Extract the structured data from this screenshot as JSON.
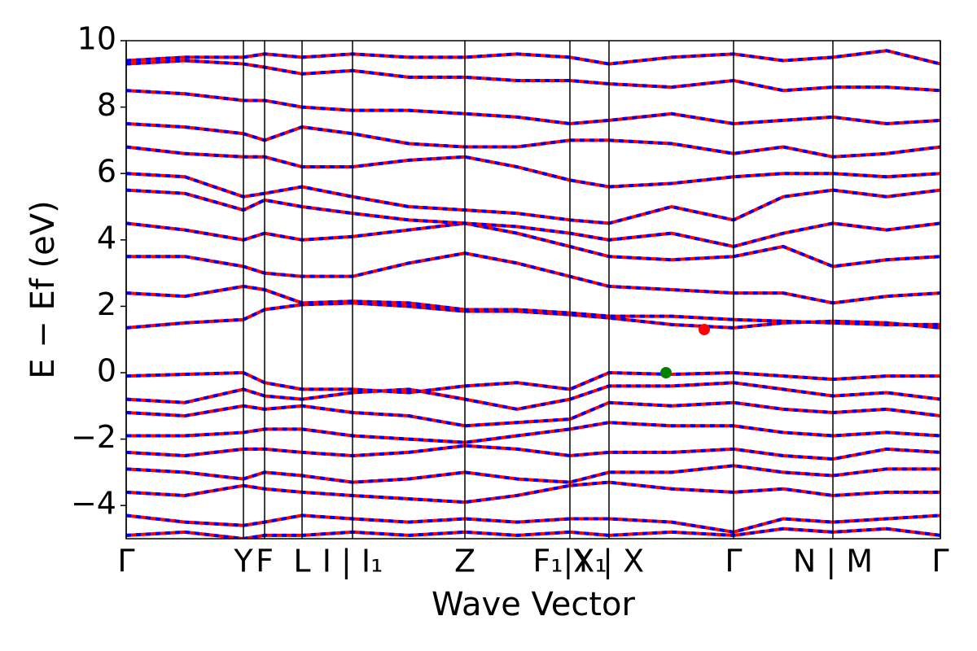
{
  "chart_data": {
    "type": "band_structure",
    "xlabel": "Wave Vector",
    "ylabel": "E − Ef (eV)",
    "xlim": [
      0,
      1000
    ],
    "ylim": [
      -5,
      10
    ],
    "xticks": [
      {
        "value": 0,
        "label": "Γ"
      },
      {
        "value": 144,
        "label": "Y"
      },
      {
        "value": 170,
        "label": "F"
      },
      {
        "value": 216,
        "label": "L"
      },
      {
        "value": 278,
        "label": "I | I₁"
      },
      {
        "value": 416,
        "label": "Z"
      },
      {
        "value": 545,
        "label": "F₁|X₁"
      },
      {
        "value": 593,
        "label": "Y | X"
      },
      {
        "value": 746,
        "label": "Γ"
      },
      {
        "value": 868,
        "label": "N | M"
      },
      {
        "value": 1000,
        "label": "Γ"
      }
    ],
    "yticks": [
      {
        "value": -4,
        "label": "−4"
      },
      {
        "value": -2,
        "label": "−2"
      },
      0,
      2,
      4,
      6,
      8,
      10
    ],
    "line_color": "#ff0000",
    "dash_color": "#0000ff",
    "x": [
      0,
      72,
      144,
      170,
      216,
      278,
      347,
      416,
      480,
      545,
      593,
      670,
      746,
      807,
      868,
      934,
      1000
    ],
    "series": [
      {
        "values": [
          1.35,
          1.5,
          1.6,
          1.9,
          2.05,
          2.1,
          2.0,
          1.85,
          1.85,
          1.75,
          1.65,
          1.45,
          1.35,
          1.5,
          1.55,
          1.5,
          1.35
        ]
      },
      {
        "values": [
          2.4,
          2.3,
          2.6,
          2.5,
          2.1,
          2.15,
          2.1,
          1.9,
          1.9,
          1.8,
          1.7,
          1.7,
          1.6,
          1.55,
          1.5,
          1.45,
          1.45
        ]
      },
      {
        "values": [
          3.5,
          3.5,
          3.2,
          3.0,
          2.9,
          2.9,
          3.3,
          3.6,
          3.3,
          2.9,
          2.6,
          2.5,
          2.4,
          2.4,
          2.1,
          2.3,
          2.4
        ]
      },
      {
        "values": [
          4.5,
          4.3,
          4.0,
          4.2,
          4.0,
          4.1,
          4.3,
          4.5,
          4.2,
          3.8,
          3.5,
          3.4,
          3.5,
          3.8,
          3.2,
          3.4,
          3.5
        ]
      },
      {
        "values": [
          5.5,
          5.4,
          4.9,
          5.2,
          5.0,
          4.8,
          4.6,
          4.5,
          4.4,
          4.2,
          4.0,
          4.2,
          3.8,
          4.2,
          4.5,
          4.3,
          4.5
        ]
      },
      {
        "values": [
          6.0,
          5.9,
          5.3,
          5.4,
          5.6,
          5.3,
          5.0,
          4.9,
          4.8,
          4.6,
          4.5,
          5.0,
          4.6,
          5.3,
          5.5,
          5.3,
          5.5
        ]
      },
      {
        "values": [
          6.8,
          6.6,
          6.5,
          6.5,
          6.2,
          6.2,
          6.4,
          6.5,
          6.2,
          5.8,
          5.6,
          5.7,
          5.9,
          6.0,
          6.0,
          5.9,
          6.0
        ]
      },
      {
        "values": [
          7.5,
          7.4,
          7.2,
          7.0,
          7.4,
          7.2,
          6.9,
          6.8,
          6.8,
          7.0,
          7.0,
          6.9,
          6.6,
          6.8,
          6.5,
          6.6,
          6.8
        ]
      },
      {
        "values": [
          8.5,
          8.4,
          8.2,
          8.2,
          8.0,
          7.9,
          7.9,
          7.8,
          7.7,
          7.5,
          7.6,
          7.8,
          7.5,
          7.6,
          7.7,
          7.5,
          7.6
        ]
      },
      {
        "values": [
          9.3,
          9.4,
          9.3,
          9.2,
          9.0,
          9.1,
          8.9,
          8.9,
          8.8,
          8.8,
          8.7,
          8.6,
          8.8,
          8.5,
          8.6,
          8.6,
          8.5
        ]
      },
      {
        "values": [
          9.4,
          9.5,
          9.5,
          9.6,
          9.5,
          9.6,
          9.5,
          9.5,
          9.6,
          9.5,
          9.3,
          9.5,
          9.6,
          9.4,
          9.5,
          9.7,
          9.3
        ]
      },
      {
        "values": [
          -0.1,
          -0.05,
          0,
          -0.3,
          -0.5,
          -0.5,
          -0.6,
          -0.4,
          -0.3,
          -0.5,
          0,
          -0.05,
          0,
          -0.1,
          -0.2,
          -0.1,
          -0.1
        ]
      },
      {
        "values": [
          -0.8,
          -0.9,
          -0.5,
          -0.7,
          -0.8,
          -0.6,
          -0.5,
          -0.8,
          -1.1,
          -0.8,
          -0.4,
          -0.4,
          -0.3,
          -0.5,
          -0.7,
          -0.6,
          -0.8
        ]
      },
      {
        "values": [
          -1.2,
          -1.3,
          -1.0,
          -1.1,
          -1.0,
          -1.2,
          -1.3,
          -1.6,
          -1.5,
          -1.4,
          -0.9,
          -1.0,
          -0.9,
          -1.1,
          -1.2,
          -1.1,
          -1.3
        ]
      },
      {
        "values": [
          -1.9,
          -1.9,
          -1.8,
          -1.7,
          -1.7,
          -1.9,
          -2.0,
          -2.1,
          -1.9,
          -1.7,
          -1.5,
          -1.6,
          -1.6,
          -1.8,
          -1.9,
          -1.8,
          -1.9
        ]
      },
      {
        "values": [
          -2.4,
          -2.5,
          -2.3,
          -2.3,
          -2.4,
          -2.5,
          -2.4,
          -2.2,
          -2.3,
          -2.5,
          -2.4,
          -2.4,
          -2.3,
          -2.5,
          -2.6,
          -2.3,
          -2.4
        ]
      },
      {
        "values": [
          -2.9,
          -3.0,
          -3.2,
          -3.0,
          -3.1,
          -3.3,
          -3.2,
          -3.0,
          -3.2,
          -3.3,
          -3.0,
          -3.0,
          -2.8,
          -3.0,
          -3.1,
          -2.9,
          -2.9
        ]
      },
      {
        "values": [
          -3.6,
          -3.7,
          -3.4,
          -3.5,
          -3.6,
          -3.7,
          -3.8,
          -3.9,
          -3.7,
          -3.4,
          -3.3,
          -3.5,
          -3.6,
          -3.5,
          -3.7,
          -3.6,
          -3.6
        ]
      },
      {
        "values": [
          -4.3,
          -4.5,
          -4.6,
          -4.5,
          -4.3,
          -4.4,
          -4.5,
          -4.4,
          -4.5,
          -4.4,
          -4.4,
          -4.5,
          -4.8,
          -4.4,
          -4.5,
          -4.4,
          -4.3
        ]
      },
      {
        "values": [
          -4.9,
          -4.8,
          -5.0,
          -4.9,
          -4.9,
          -4.8,
          -4.9,
          -4.8,
          -4.9,
          -4.8,
          -4.9,
          -4.8,
          -4.9,
          -4.7,
          -4.8,
          -4.7,
          -4.9
        ]
      }
    ],
    "points": [
      {
        "x": 710,
        "y": 1.3,
        "color": "#ff0000"
      },
      {
        "x": 663,
        "y": 0,
        "color": "#008000"
      }
    ]
  }
}
